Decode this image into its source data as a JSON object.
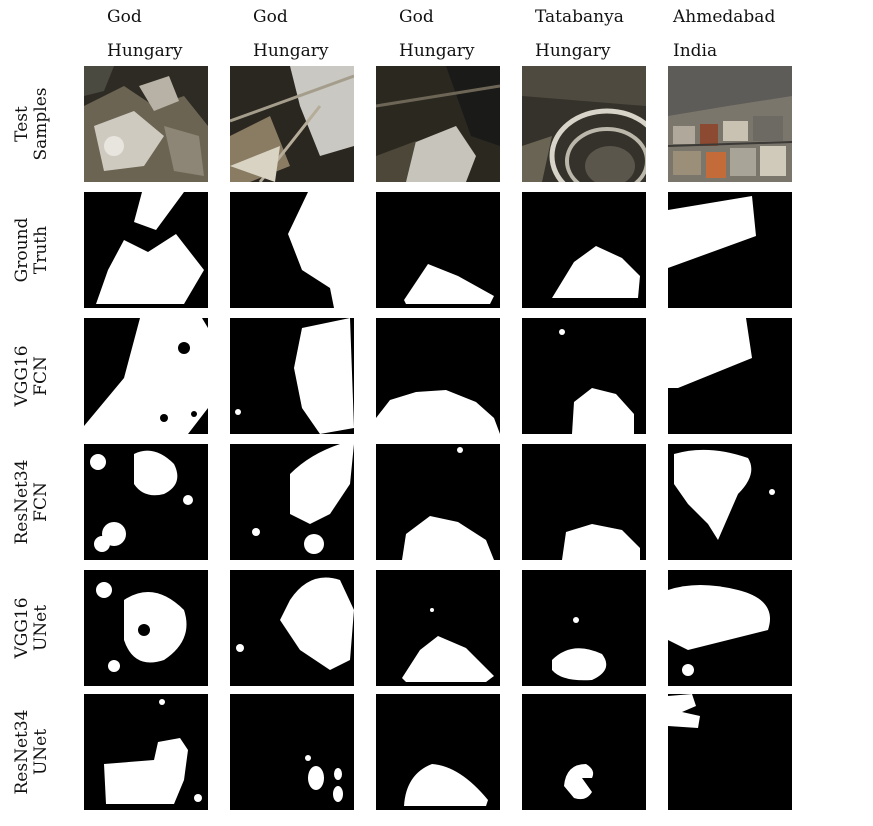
{
  "columns": [
    {
      "place": "God",
      "country": "Hungary"
    },
    {
      "place": "God",
      "country": "Hungary"
    },
    {
      "place": "God",
      "country": "Hungary"
    },
    {
      "place": "Tatabanya",
      "country": "Hungary"
    },
    {
      "place": "Ahmedabad",
      "country": "India"
    }
  ],
  "rows": [
    {
      "line1": "Test",
      "line2": "Samples"
    },
    {
      "line1": "Ground",
      "line2": "Truth"
    },
    {
      "line1": "VGG16",
      "line2": "FCN"
    },
    {
      "line1": "ResNet34",
      "line2": "FCN"
    },
    {
      "line1": "VGG16",
      "line2": "UNet"
    },
    {
      "line1": "ResNet34",
      "line2": "UNet"
    }
  ]
}
